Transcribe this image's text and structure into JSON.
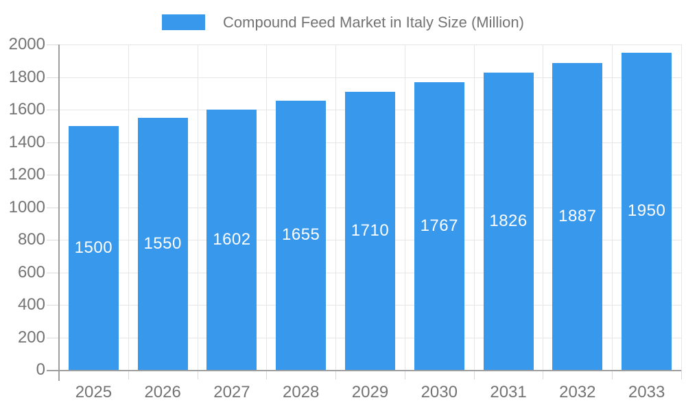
{
  "chart_data": {
    "type": "bar",
    "title": "Compound Feed Market in Italy Size (Million)",
    "legend_position": "top",
    "categories": [
      "2025",
      "2026",
      "2027",
      "2028",
      "2029",
      "2030",
      "2031",
      "2032",
      "2033"
    ],
    "values": [
      1500,
      1550,
      1602,
      1655,
      1710,
      1767,
      1826,
      1887,
      1950
    ],
    "xlabel": "",
    "ylabel": "",
    "ylim": [
      0,
      2000
    ],
    "ytick_step": 200,
    "grid": true,
    "bar_value_labels_shown": true,
    "colors": {
      "bar": "#3899ec",
      "grid": "#e6e6e6",
      "tick": "#d9d9d9",
      "axis": "#9e9e9e",
      "text": "#737373",
      "bar_label": "#ffffff",
      "background": "#ffffff"
    }
  }
}
